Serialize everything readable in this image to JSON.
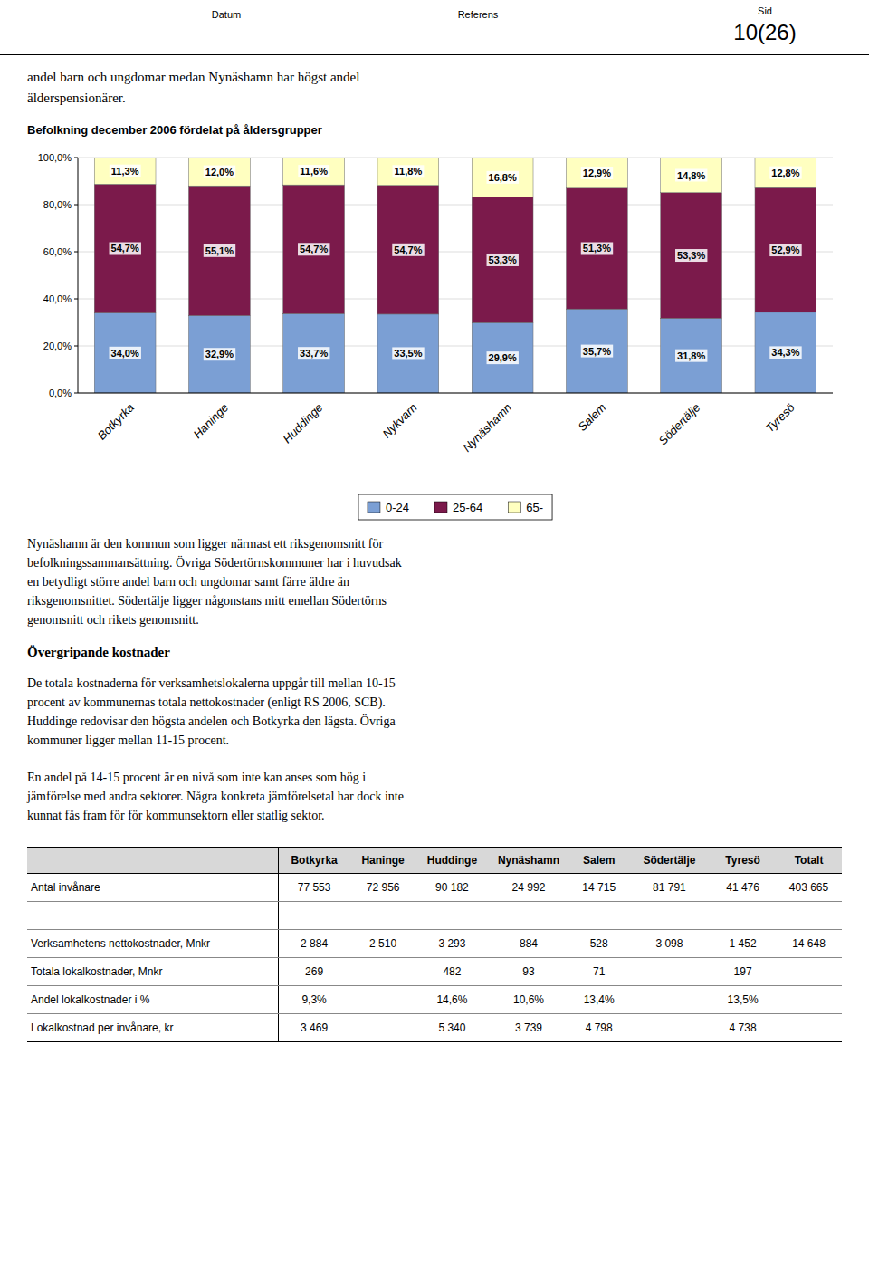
{
  "header": {
    "left": "Datum",
    "center": "Referens",
    "right_label": "Sid",
    "right_value": "10(26)"
  },
  "intro_text": "andel barn och ungdomar medan Nynäshamn har högst andel\nälderspensionärer.",
  "chart_data": {
    "type": "bar",
    "title": "Befolkning december 2006 fördelat på åldersgrupper",
    "stacked": true,
    "categories": [
      "Botkyrka",
      "Haninge",
      "Huddinge",
      "Nykvarn",
      "Nynäshamn",
      "Salem",
      "Södertälje",
      "Tyresö"
    ],
    "series": [
      {
        "name": "0-24",
        "color": "#7B9FD4",
        "values": [
          34.0,
          32.9,
          33.7,
          33.5,
          29.9,
          35.7,
          31.8,
          34.3
        ],
        "value_labels": [
          "34,0%",
          "32,9%",
          "33,7%",
          "33,5%",
          "29,9%",
          "35,7%",
          "31,8%",
          "34,3%"
        ]
      },
      {
        "name": "25-64",
        "color": "#7B1A4B",
        "values": [
          54.7,
          55.1,
          54.7,
          54.7,
          53.3,
          51.3,
          53.3,
          52.9
        ],
        "value_labels": [
          "54,7%",
          "55,1%",
          "54,7%",
          "54,7%",
          "53,3%",
          "51,3%",
          "53,3%",
          "52,9%"
        ]
      },
      {
        "name": "65-",
        "color": "#FFFFC0",
        "values": [
          11.3,
          12.0,
          11.6,
          11.8,
          16.8,
          12.9,
          14.8,
          12.8
        ],
        "value_labels": [
          "11,3%",
          "12,0%",
          "11,6%",
          "11,8%",
          "16,8%",
          "12,9%",
          "14,8%",
          "12,8%"
        ]
      }
    ],
    "ylim": [
      0,
      100
    ],
    "yticks": [
      {
        "value": 0,
        "label": "0,0%"
      },
      {
        "value": 20,
        "label": "20,0%"
      },
      {
        "value": 40,
        "label": "40,0%"
      },
      {
        "value": 60,
        "label": "60,0%"
      },
      {
        "value": 80,
        "label": "80,0%"
      },
      {
        "value": 100,
        "label": "100,0%"
      }
    ],
    "grid": true,
    "data_labels": true,
    "legend": "bottom"
  },
  "para1": "Nynäshamn är den kommun som ligger närmast ett riksgenomsnitt för\nbefolkningssammansättning. Övriga Södertörnskommuner har i huvudsak\nen betydligt större andel barn och ungdomar samt färre äldre än\nriksgenomsnittet. Södertälje ligger någonstans mitt emellan Södertörns\ngenomsnitt och rikets genomsnitt.",
  "section_heading": "Övergripande kostnader",
  "para2": "De totala kostnaderna för verksamhetslokalerna uppgår till mellan 10-15\nprocent av kommunernas totala nettokostnader (enligt RS 2006, SCB).\nHuddinge redovisar den högsta andelen och Botkyrka den lägsta. Övriga\nkommuner ligger mellan 11-15 procent.",
  "para3": "En andel på 14-15 procent är en nivå som inte kan anses som hög i\njämförelse med andra sektorer. Några konkreta jämförelsetal har dock inte\nkunnat fås fram för för kommunsektorn eller statlig sektor.",
  "table": {
    "columns": [
      null,
      "Botkyrka",
      "Haninge",
      "Huddinge",
      "Nynäshamn",
      "Salem",
      "Södertälje",
      "Tyresö",
      "Totalt"
    ],
    "rows": [
      [
        "Antal invånare",
        "77 553",
        "72 956",
        "90 182",
        "24 992",
        "14 715",
        "81 791",
        "41 476",
        "403 665"
      ],
      [
        null,
        null,
        null,
        null,
        null,
        null,
        null,
        null,
        null
      ],
      [
        "Verksamhetens nettokostnader, Mnkr",
        "2 884",
        "2 510",
        "3 293",
        "884",
        "528",
        "3 098",
        "1 452",
        "14 648"
      ],
      [
        "Totala lokalkostnader, Mnkr",
        "269",
        null,
        "482",
        "93",
        "71",
        null,
        "197",
        null
      ],
      [
        "Andel lokalkostnader i %",
        "9,3%",
        null,
        "14,6%",
        "10,6%",
        "13,4%",
        null,
        "13,5%",
        null
      ],
      [
        "Lokalkostnad per invånare, kr",
        "3 469",
        null,
        "5 340",
        "3 739",
        "4 798",
        null,
        "4 738",
        null
      ]
    ]
  }
}
